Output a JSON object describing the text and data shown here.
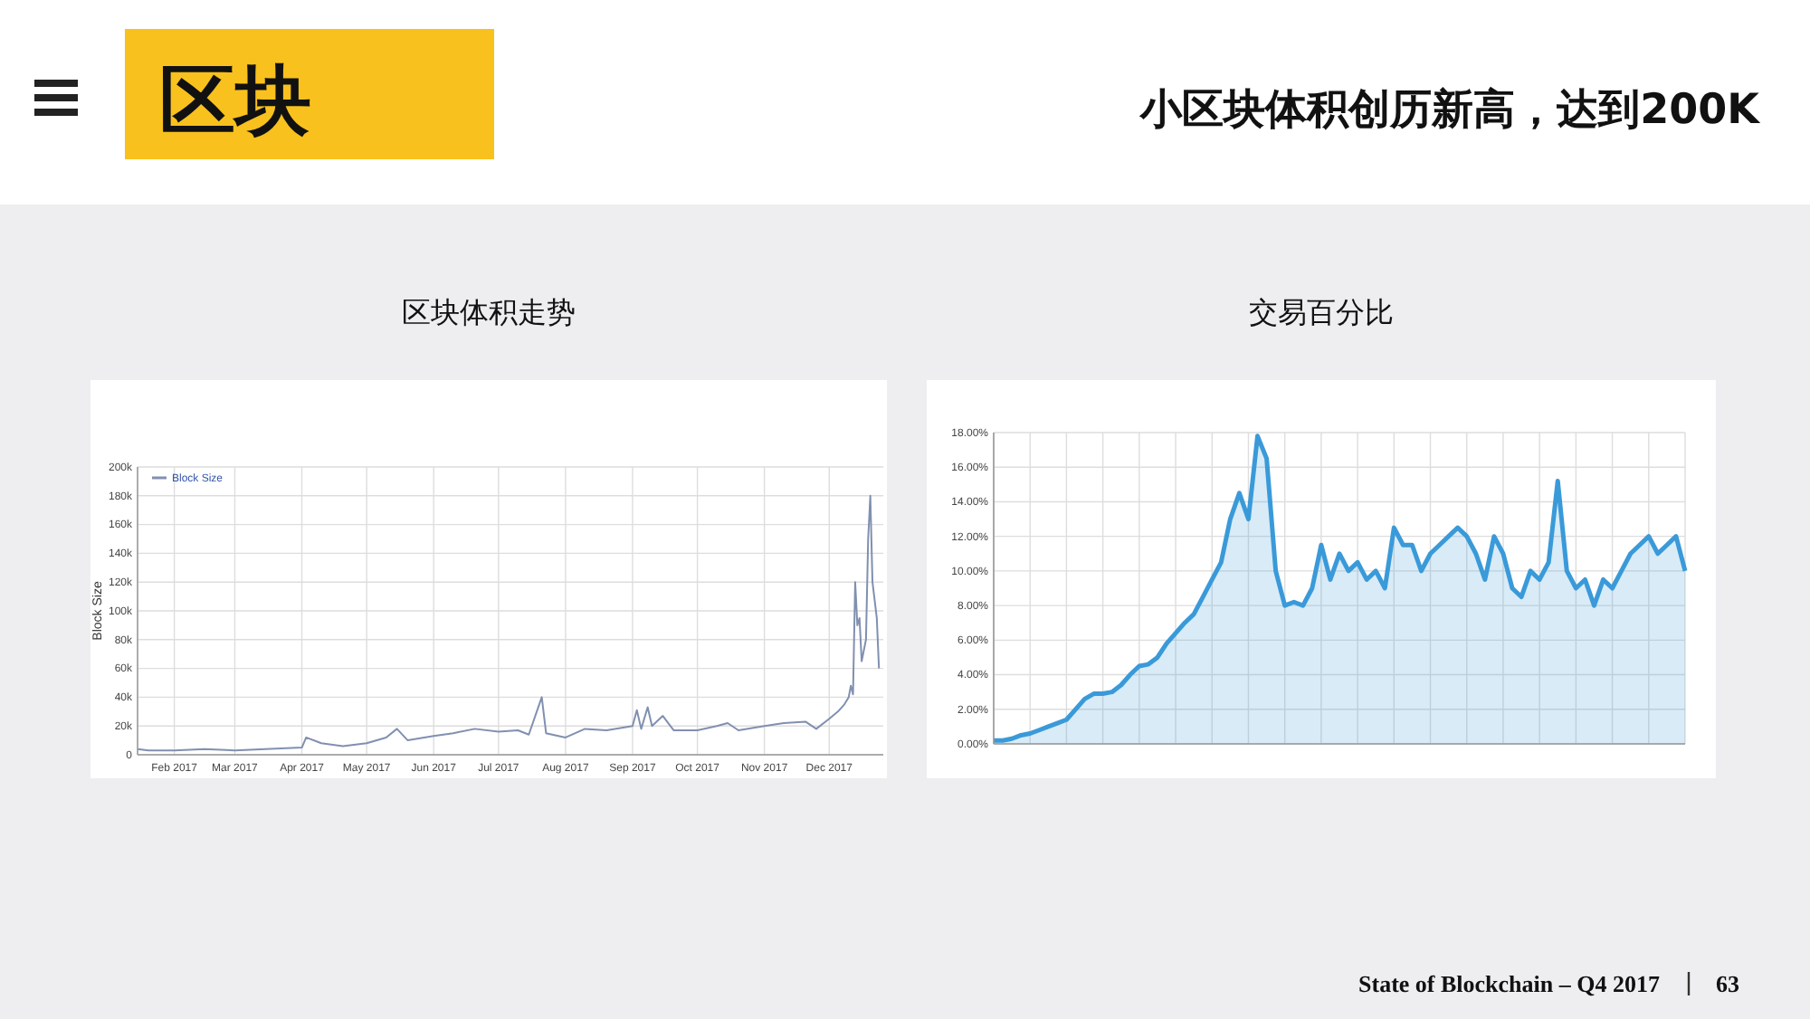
{
  "chart_data": [
    {
      "type": "other",
      "title": "区块",
      "subtitle": "小区块体积创历新高，达到200K",
      "annotations": [
        "State of Blockchain – Q4 2017",
        "63"
      ]
    },
    {
      "type": "line",
      "title": "区块体积走势",
      "ylabel": "Block Size",
      "legend": "top left",
      "grid": true,
      "marker": "none",
      "line_style": "solid",
      "xlim": [
        "2017-01-15",
        "2017-12-26"
      ],
      "xticks": [
        {
          "value": "2017-02-01",
          "label": "Feb 2017"
        },
        {
          "value": "2017-03-01",
          "label": "Mar 2017"
        },
        {
          "value": "2017-04-01",
          "label": "Apr 2017"
        },
        {
          "value": "2017-05-01",
          "label": "May 2017"
        },
        {
          "value": "2017-06-01",
          "label": "Jun 2017"
        },
        {
          "value": "2017-07-01",
          "label": "Jul 2017"
        },
        {
          "value": "2017-08-01",
          "label": "Aug 2017"
        },
        {
          "value": "2017-09-01",
          "label": "Sep 2017"
        },
        {
          "value": "2017-10-01",
          "label": "Oct 2017"
        },
        {
          "value": "2017-11-01",
          "label": "Nov 2017"
        },
        {
          "value": "2017-12-01",
          "label": "Dec 2017"
        }
      ],
      "ylim": [
        0,
        200000
      ],
      "yticks": [
        0,
        {
          "value": 20000,
          "label": "20k"
        },
        {
          "value": 40000,
          "label": "40k"
        },
        {
          "value": 60000,
          "label": "60k"
        },
        {
          "value": 80000,
          "label": "80k"
        },
        {
          "value": 100000,
          "label": "100k"
        },
        {
          "value": 120000,
          "label": "120k"
        },
        {
          "value": 140000,
          "label": "140k"
        },
        {
          "value": 160000,
          "label": "160k"
        },
        {
          "value": 180000,
          "label": "180k"
        },
        {
          "value": 200000,
          "label": "200k"
        }
      ],
      "x": [
        "2017-01-15",
        "2017-01-20",
        "2017-02-01",
        "2017-02-15",
        "2017-03-01",
        "2017-03-15",
        "2017-04-01",
        "2017-04-03",
        "2017-04-10",
        "2017-04-20",
        "2017-05-01",
        "2017-05-10",
        "2017-05-15",
        "2017-05-20",
        "2017-06-01",
        "2017-06-10",
        "2017-06-20",
        "2017-07-01",
        "2017-07-10",
        "2017-07-15",
        "2017-07-21",
        "2017-07-23",
        "2017-08-01",
        "2017-08-10",
        "2017-08-20",
        "2017-09-01",
        "2017-09-03",
        "2017-09-05",
        "2017-09-08",
        "2017-09-10",
        "2017-09-15",
        "2017-09-20",
        "2017-10-01",
        "2017-10-10",
        "2017-10-15",
        "2017-10-20",
        "2017-11-01",
        "2017-11-10",
        "2017-11-20",
        "2017-11-25",
        "2017-12-01",
        "2017-12-05",
        "2017-12-08",
        "2017-12-10",
        "2017-12-11",
        "2017-12-12",
        "2017-12-13",
        "2017-12-14",
        "2017-12-15",
        "2017-12-16",
        "2017-12-18",
        "2017-12-19",
        "2017-12-20",
        "2017-12-21",
        "2017-12-23",
        "2017-12-24"
      ],
      "series": [
        {
          "name": "Block Size",
          "color": "#8190b0",
          "values": [
            4000,
            3000,
            3000,
            4000,
            3000,
            4000,
            5000,
            12000,
            8000,
            6000,
            8000,
            12000,
            18000,
            10000,
            13000,
            15000,
            18000,
            16000,
            17000,
            14000,
            40000,
            15000,
            12000,
            18000,
            17000,
            20000,
            31000,
            18000,
            33000,
            20000,
            27000,
            17000,
            17000,
            20000,
            22000,
            17000,
            20000,
            22000,
            23000,
            18000,
            25000,
            30000,
            35000,
            40000,
            48000,
            42000,
            120000,
            90000,
            95000,
            65000,
            80000,
            150000,
            180000,
            120000,
            95000,
            60000
          ]
        }
      ]
    },
    {
      "type": "area",
      "title": "交易百分比",
      "grid": true,
      "marker": "none",
      "categories": [
        null,
        null,
        null,
        null,
        null,
        null,
        null,
        null,
        null,
        null,
        null,
        null,
        null,
        null,
        null,
        null,
        null,
        null,
        null,
        null,
        null,
        null,
        null,
        null,
        null,
        null,
        null,
        null,
        null,
        null,
        null,
        null,
        null,
        null,
        null,
        null,
        null,
        null,
        null,
        null,
        null,
        null,
        null,
        null,
        null,
        null,
        null,
        null,
        null,
        null,
        null,
        null,
        null,
        null,
        null,
        null,
        null,
        null,
        null,
        null,
        null,
        null,
        null,
        null,
        null,
        null,
        null,
        null,
        null,
        null,
        null,
        null,
        null,
        null,
        null,
        null,
        null
      ],
      "ylim": [
        0,
        18
      ],
      "yticks": [
        {
          "value": 0,
          "label": "0.00%"
        },
        {
          "value": 2,
          "label": "2.00%"
        },
        {
          "value": 4,
          "label": "4.00%"
        },
        {
          "value": 6,
          "label": "6.00%"
        },
        {
          "value": 8,
          "label": "8.00%"
        },
        {
          "value": 10,
          "label": "10.00%"
        },
        {
          "value": 12,
          "label": "12.00%"
        },
        {
          "value": 14,
          "label": "14.00%"
        },
        {
          "value": 16,
          "label": "16.00%"
        },
        {
          "value": 18,
          "label": "18.00%"
        }
      ],
      "series": [
        {
          "color": "#3a9ad9",
          "values": [
            0.2,
            0.2,
            0.3,
            0.5,
            0.6,
            0.8,
            1.0,
            1.2,
            1.4,
            2.0,
            2.6,
            2.9,
            2.9,
            3.0,
            3.4,
            4.0,
            4.5,
            4.6,
            5.0,
            5.8,
            6.4,
            7.0,
            7.5,
            8.5,
            9.5,
            10.5,
            13.0,
            14.5,
            13.0,
            17.8,
            16.5,
            10.0,
            8.0,
            8.2,
            8.0,
            9.0,
            11.5,
            9.5,
            11.0,
            10.0,
            10.5,
            9.5,
            10.0,
            9.0,
            12.5,
            11.5,
            11.5,
            10.0,
            11.0,
            11.5,
            12.0,
            12.5,
            12.0,
            11.0,
            9.5,
            12.0,
            11.0,
            9.0,
            8.5,
            10.0,
            9.5,
            10.5,
            15.2,
            10.0,
            9.0,
            9.5,
            8.0,
            9.5,
            9.0,
            10.0,
            11.0,
            11.5,
            12.0,
            11.0,
            11.5,
            12.0,
            10.0
          ]
        }
      ]
    }
  ]
}
